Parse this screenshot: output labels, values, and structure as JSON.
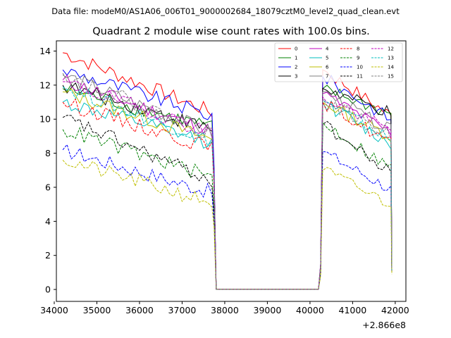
{
  "chart_data": {
    "type": "line",
    "suptitle": "Data file: modeM0/AS1A06_006T01_9000002684_18079cztM0_level2_quad_clean.evt",
    "title": "Quadrant 2 module wise count rates with 100.0s bins.",
    "xlabel": "",
    "ylabel": "",
    "x_offset_label": "+2.866e8",
    "xlim": [
      34050,
      42250
    ],
    "ylim": [
      -0.7,
      14.6
    ],
    "xticks": [
      34000,
      35000,
      36000,
      37000,
      38000,
      39000,
      40000,
      41000,
      42000
    ],
    "xtick_labels": [
      "34000",
      "35000",
      "36000",
      "37000",
      "38000",
      "39000",
      "40000",
      "41000",
      "42000"
    ],
    "yticks": [
      0,
      2,
      4,
      6,
      8,
      10,
      12,
      14
    ],
    "ytick_labels": [
      "0",
      "2",
      "4",
      "6",
      "8",
      "10",
      "12",
      "14"
    ],
    "legend_position": "top-right",
    "time_bins": {
      "segment1_start": 34200,
      "segment1_end": 37700,
      "gap_start": 37800,
      "gap_end": 40200,
      "segment2_start": 40300,
      "segment2_end": 41900,
      "step": 100
    },
    "series": [
      {
        "name": "0",
        "color": "#ff0000",
        "dash": "solid",
        "seg1_start": 13.9,
        "seg1_end": 10.4,
        "drop": 7.0,
        "gap_level": 0.02,
        "ramp": 1.5,
        "seg2_peak": 12.9,
        "seg2_end": 10.2,
        "final": 1.3
      },
      {
        "name": "1",
        "color": "#008000",
        "dash": "solid",
        "seg1_start": 11.8,
        "seg1_end": 9.5,
        "drop": 6.5,
        "gap_level": 0.02,
        "ramp": 1.4,
        "seg2_peak": 11.8,
        "seg2_end": 10.3,
        "final": 1.2
      },
      {
        "name": "2",
        "color": "#0000ff",
        "dash": "solid",
        "seg1_start": 12.9,
        "seg1_end": 10.2,
        "drop": 7.2,
        "gap_level": 0.02,
        "ramp": 1.5,
        "seg2_peak": 12.5,
        "seg2_end": 10.0,
        "final": 1.5
      },
      {
        "name": "3",
        "color": "#000000",
        "dash": "solid",
        "seg1_start": 12.0,
        "seg1_end": 9.4,
        "drop": 6.5,
        "gap_level": 0.02,
        "ramp": 1.4,
        "seg2_peak": 11.8,
        "seg2_end": 10.3,
        "final": 1.3
      },
      {
        "name": "4",
        "color": "#bf00bf",
        "dash": "solid",
        "seg1_start": 12.3,
        "seg1_end": 9.3,
        "drop": 6.4,
        "gap_level": 0.02,
        "ramp": 1.4,
        "seg2_peak": 11.5,
        "seg2_end": 9.2,
        "final": 1.2
      },
      {
        "name": "5",
        "color": "#00bfbf",
        "dash": "solid",
        "seg1_start": 11.0,
        "seg1_end": 8.6,
        "drop": 6.0,
        "gap_level": 0.02,
        "ramp": 1.3,
        "seg2_peak": 11.0,
        "seg2_end": 8.5,
        "final": 1.1
      },
      {
        "name": "6",
        "color": "#bfbf00",
        "dash": "solid",
        "seg1_start": 11.6,
        "seg1_end": 8.8,
        "drop": 6.2,
        "gap_level": 0.02,
        "ramp": 1.3,
        "seg2_peak": 11.0,
        "seg2_end": 9.0,
        "final": 1.1
      },
      {
        "name": "7",
        "color": "#808080",
        "dash": "solid",
        "seg1_start": 12.6,
        "seg1_end": 9.2,
        "drop": 6.4,
        "gap_level": 0.02,
        "ramp": 1.4,
        "seg2_peak": 11.6,
        "seg2_end": 9.3,
        "final": 1.2
      },
      {
        "name": "8",
        "color": "#ff0000",
        "dash": "dashed",
        "seg1_start": 11.0,
        "seg1_end": 8.3,
        "drop": 5.8,
        "gap_level": 0.02,
        "ramp": 1.3,
        "seg2_peak": 11.0,
        "seg2_end": 8.6,
        "final": 1.1
      },
      {
        "name": "9",
        "color": "#008000",
        "dash": "dashed",
        "seg1_start": 9.4,
        "seg1_end": 6.6,
        "drop": 4.6,
        "gap_level": 0.02,
        "ramp": 1.0,
        "seg2_peak": 9.8,
        "seg2_end": 7.1,
        "final": 1.0
      },
      {
        "name": "10",
        "color": "#0000ff",
        "dash": "dashed",
        "seg1_start": 8.2,
        "seg1_end": 5.7,
        "drop": 4.0,
        "gap_level": 0.02,
        "ramp": 0.9,
        "seg2_peak": 8.1,
        "seg2_end": 5.9,
        "final": 1.0
      },
      {
        "name": "11",
        "color": "#000000",
        "dash": "dashed",
        "seg1_start": 10.1,
        "seg1_end": 6.4,
        "drop": 4.5,
        "gap_level": 0.02,
        "ramp": 1.0,
        "seg2_peak": 9.7,
        "seg2_end": 6.8,
        "final": 1.0
      },
      {
        "name": "12",
        "color": "#bf00bf",
        "dash": "dashed",
        "seg1_start": 12.2,
        "seg1_end": 9.2,
        "drop": 6.3,
        "gap_level": 0.02,
        "ramp": 1.4,
        "seg2_peak": 11.3,
        "seg2_end": 9.3,
        "final": 1.2
      },
      {
        "name": "13",
        "color": "#00bfbf",
        "dash": "dashed",
        "seg1_start": 11.9,
        "seg1_end": 8.7,
        "drop": 6.1,
        "gap_level": 0.02,
        "ramp": 1.3,
        "seg2_peak": 11.1,
        "seg2_end": 8.8,
        "final": 1.1
      },
      {
        "name": "14",
        "color": "#bfbf00",
        "dash": "dashed",
        "seg1_start": 7.6,
        "seg1_end": 5.1,
        "drop": 3.6,
        "gap_level": 0.02,
        "ramp": 0.8,
        "seg2_peak": 7.0,
        "seg2_end": 5.0,
        "final": 0.9
      },
      {
        "name": "15",
        "color": "#808080",
        "dash": "dashed",
        "seg1_start": 12.7,
        "seg1_end": 9.1,
        "drop": 6.3,
        "gap_level": 0.02,
        "ramp": 1.4,
        "seg2_peak": 11.2,
        "seg2_end": 9.0,
        "final": 1.2
      }
    ]
  }
}
